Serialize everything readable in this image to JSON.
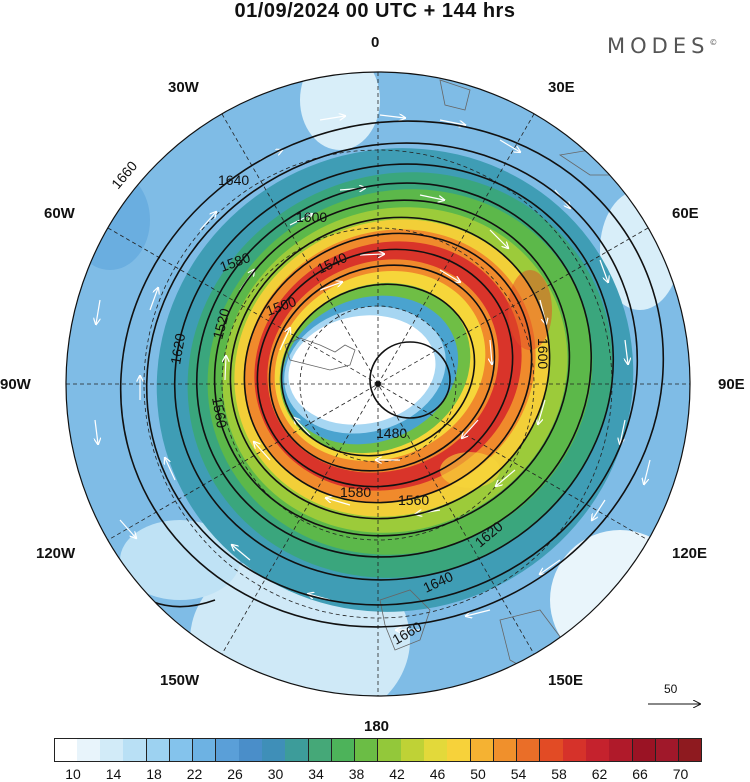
{
  "title": "01/09/2024  00 UTC  + 144 hrs",
  "brand": "MODES",
  "brand_mark": "©",
  "longitudes": {
    "n": "0",
    "ne30": "30E",
    "e60": "60E",
    "e90": "90E",
    "e120": "120E",
    "e150": "150E",
    "s": "180",
    "w150": "150W",
    "w120": "120W",
    "w90": "90W",
    "w60": "60W",
    "w30": "30W"
  },
  "contour_labels": [
    "1660",
    "1640",
    "1600",
    "1580",
    "1540",
    "1500",
    "1520",
    "1620",
    "1560",
    "1480",
    "1640",
    "1660",
    "1620",
    "1600",
    "1580",
    "1560"
  ],
  "vector_reference": "50",
  "colorbar": {
    "labels": [
      "10",
      "14",
      "18",
      "22",
      "26",
      "30",
      "34",
      "38",
      "42",
      "46",
      "50",
      "54",
      "58",
      "62",
      "66",
      "70"
    ],
    "colors": [
      "#ffffff",
      "#e8f4fb",
      "#d2ebf8",
      "#b9e0f5",
      "#9dd2f1",
      "#84c3ec",
      "#6db2e3",
      "#5a9fd8",
      "#4a8ec9",
      "#3f8fb8",
      "#3d9c9a",
      "#45a878",
      "#4db35a",
      "#6bbd45",
      "#93c83a",
      "#bfd236",
      "#e3d93a",
      "#f7d23a",
      "#f5b232",
      "#f0902c",
      "#ea6e28",
      "#e24b25",
      "#d6322a",
      "#c5222d",
      "#b01a2a",
      "#9a1324",
      "#a0182a",
      "#8e1a1f"
    ]
  }
}
